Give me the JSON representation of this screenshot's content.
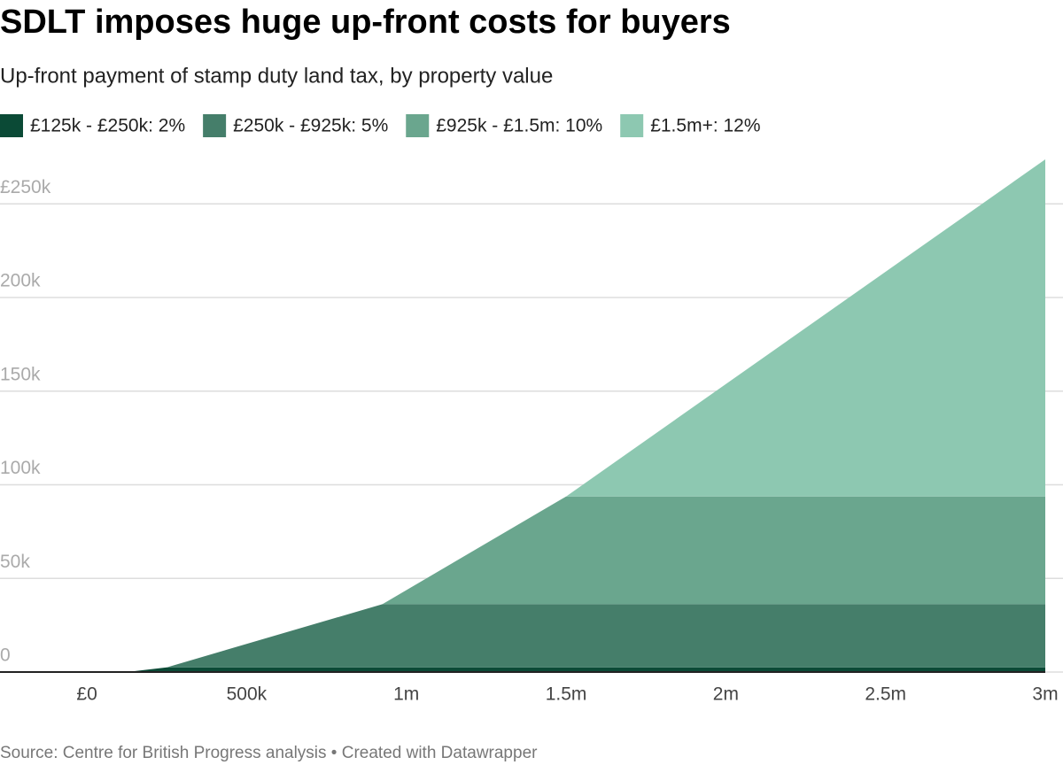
{
  "chart_data": {
    "type": "stacked_area",
    "title": "SDLT imposes huge up-front costs for buyers",
    "subtitle": "Up-front payment of stamp duty land tax, by property value",
    "x": [
      0,
      125000,
      250000,
      925000,
      1500000,
      3000000
    ],
    "series": [
      {
        "name": "£125k - £250k: 2%",
        "color": "#0b4a36",
        "values": [
          0,
          0,
          2500,
          2500,
          2500,
          2500
        ]
      },
      {
        "name": "£250k - £925k: 5%",
        "color": "#457e6a",
        "values": [
          0,
          0,
          0,
          33750,
          33750,
          33750
        ]
      },
      {
        "name": "£925k - £1.5m: 10%",
        "color": "#6aa68e",
        "values": [
          0,
          0,
          0,
          0,
          57500,
          57500
        ]
      },
      {
        "name": "£1.5m+: 12%",
        "color": "#8dc8b1",
        "values": [
          0,
          0,
          0,
          0,
          0,
          180000
        ]
      }
    ],
    "xlim": [
      -272000,
      3000000
    ],
    "xticks": [
      {
        "value": 0,
        "label": "£0"
      },
      {
        "value": 500000,
        "label": "500k"
      },
      {
        "value": 1000000,
        "label": "1m"
      },
      {
        "value": 1500000,
        "label": "1.5m"
      },
      {
        "value": 2000000,
        "label": "2m"
      },
      {
        "value": 2500000,
        "label": "2.5m"
      },
      {
        "value": 3000000,
        "label": "3m"
      }
    ],
    "ylim": [
      0,
      273750
    ],
    "yticks": [
      0,
      {
        "value": 50000,
        "label": "50k"
      },
      {
        "value": 100000,
        "label": "100k"
      },
      {
        "value": 150000,
        "label": "150k"
      },
      {
        "value": 200000,
        "label": "200k"
      },
      {
        "value": 250000,
        "label": "£250k"
      }
    ],
    "grid": true,
    "legend": "top",
    "source": "Source: Centre for British Progress analysis • Created with Datawrapper"
  }
}
